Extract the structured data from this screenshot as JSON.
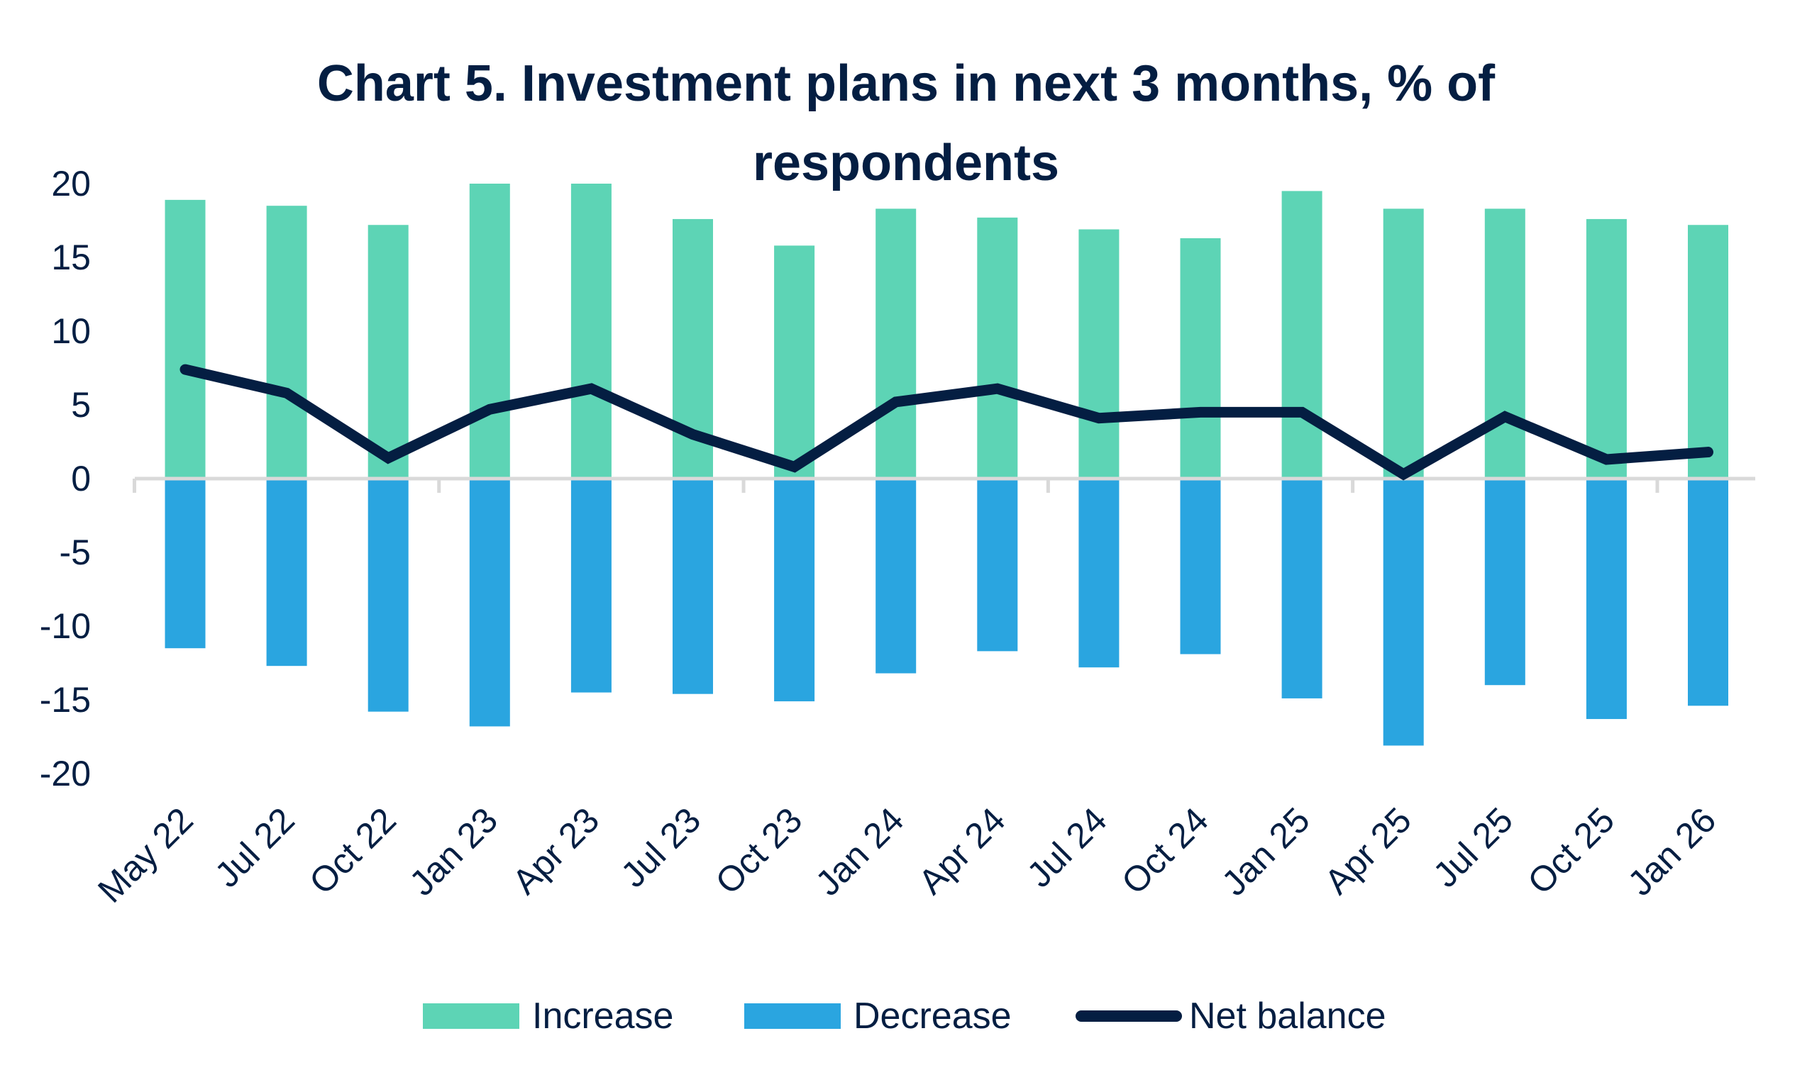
{
  "title": {
    "line1": "Chart 5. Investment plans in next 3 months, % of",
    "line2": "respondents"
  },
  "colors": {
    "increase": "#5DD4B5",
    "decrease": "#2AA5E0",
    "net_balance": "#041E42",
    "axis": "#D9D9D9",
    "text": "#041E42"
  },
  "legend": {
    "increase": "Increase",
    "decrease": "Decrease",
    "net_balance": "Net balance"
  },
  "chart_data": {
    "type": "bar",
    "title": "Chart 5. Investment plans in next 3 months, % of respondents",
    "xlabel": "",
    "ylabel": "",
    "ylim": [
      -20,
      20
    ],
    "yticks": [
      20,
      15,
      10,
      5,
      0,
      -5,
      -10,
      -15,
      -20
    ],
    "grid": false,
    "legend_position": "bottom",
    "categories": [
      "May 22",
      "Jul 22",
      "Oct 22",
      "Jan 23",
      "Apr 23",
      "Jul 23",
      "Oct 23",
      "Jan 24",
      "Apr 24",
      "Jul 24",
      "Oct 24",
      "Jan 25",
      "Apr 25",
      "Jul 25",
      "Oct 25",
      "Jan 26"
    ],
    "series": [
      {
        "name": "Increase",
        "type": "bar",
        "values": [
          18.9,
          18.5,
          17.2,
          20.0,
          20.0,
          17.6,
          15.8,
          18.3,
          17.7,
          16.9,
          16.3,
          19.5,
          18.3,
          18.3,
          17.6,
          17.2
        ]
      },
      {
        "name": "Decrease",
        "type": "bar",
        "values": [
          -11.5,
          -12.7,
          -15.8,
          -16.8,
          -14.5,
          -14.6,
          -15.1,
          -13.2,
          -11.7,
          -12.8,
          -11.9,
          -14.9,
          -18.1,
          -14.0,
          -16.3,
          -15.4
        ]
      },
      {
        "name": "Net balance",
        "type": "line",
        "values": [
          7.4,
          5.8,
          1.4,
          4.7,
          6.1,
          3.0,
          0.8,
          5.2,
          6.1,
          4.1,
          4.5,
          4.5,
          0.3,
          4.2,
          1.3,
          1.8
        ]
      }
    ]
  }
}
